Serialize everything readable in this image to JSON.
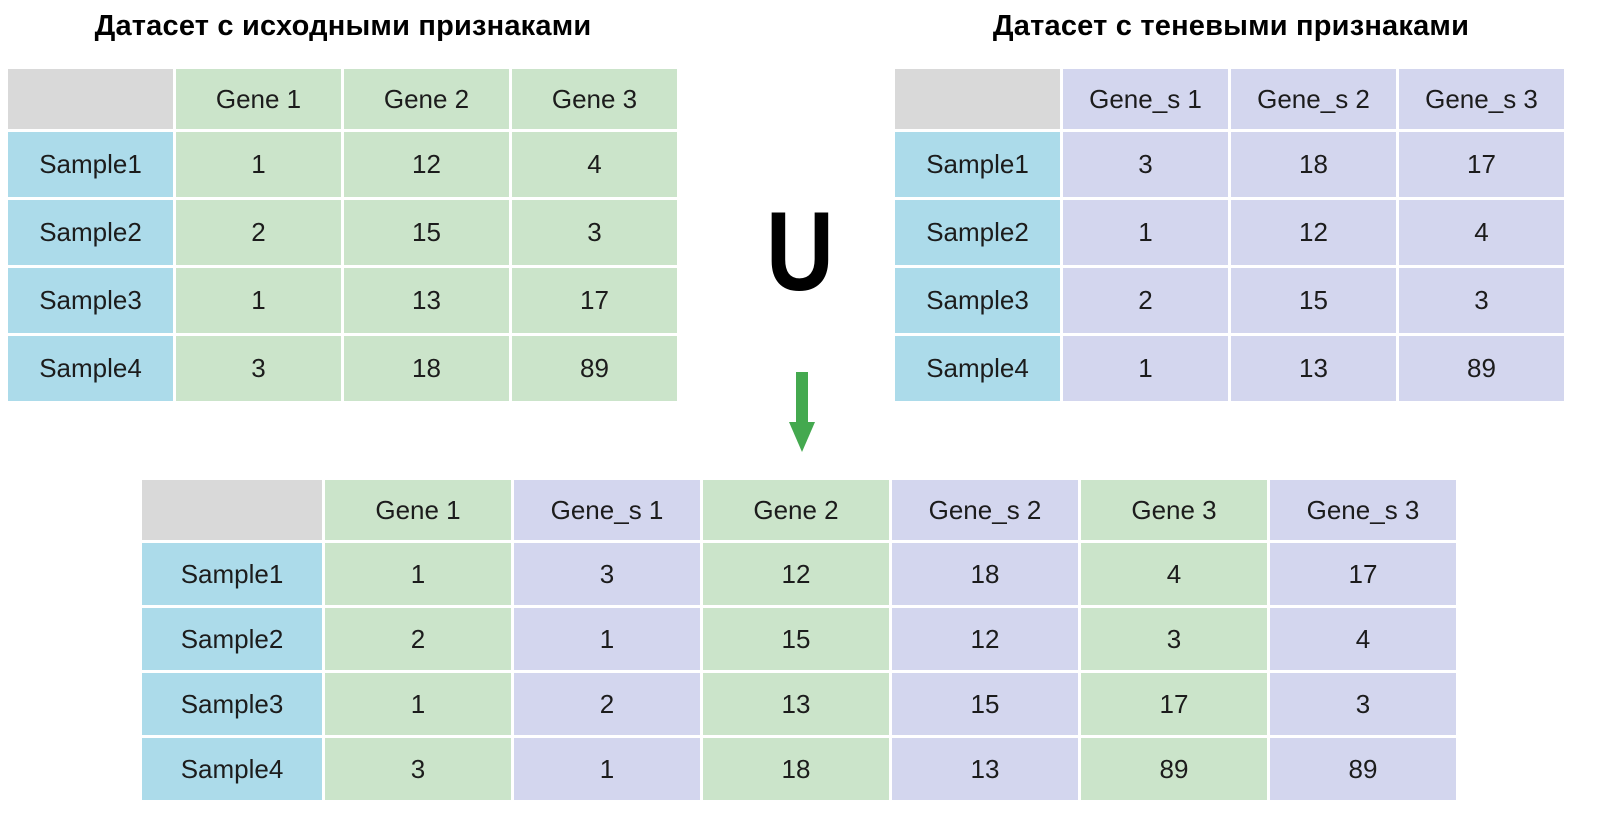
{
  "colors": {
    "original_feature_bg": "#cbe4ca",
    "shadow_feature_bg": "#d3d6ee",
    "sample_label_bg": "#acdbea",
    "corner_bg": "#d9d9d9",
    "arrow_green": "#44a94f",
    "text": "#1c1c1c"
  },
  "union": {
    "symbol": "U"
  },
  "tables": {
    "original": {
      "title": "Датасет с исходными признаками",
      "columns": [
        {
          "label": "Gene 1",
          "type": "green"
        },
        {
          "label": "Gene 2",
          "type": "green"
        },
        {
          "label": "Gene 3",
          "type": "green"
        }
      ],
      "rows": [
        {
          "label": "Sample1",
          "values": [
            "1",
            "12",
            "4"
          ]
        },
        {
          "label": "Sample2",
          "values": [
            "2",
            "15",
            "3"
          ]
        },
        {
          "label": "Sample3",
          "values": [
            "1",
            "13",
            "17"
          ]
        },
        {
          "label": "Sample4",
          "values": [
            "3",
            "18",
            "89"
          ]
        }
      ]
    },
    "shadow": {
      "title": "Датасет с теневыми признаками",
      "columns": [
        {
          "label": "Gene_s 1",
          "type": "lavender"
        },
        {
          "label": "Gene_s 2",
          "type": "lavender"
        },
        {
          "label": "Gene_s 3",
          "type": "lavender"
        }
      ],
      "rows": [
        {
          "label": "Sample1",
          "values": [
            "3",
            "18",
            "17"
          ]
        },
        {
          "label": "Sample2",
          "values": [
            "1",
            "12",
            "4"
          ]
        },
        {
          "label": "Sample3",
          "values": [
            "2",
            "15",
            "3"
          ]
        },
        {
          "label": "Sample4",
          "values": [
            "1",
            "13",
            "89"
          ]
        }
      ]
    },
    "combined": {
      "title": "",
      "columns": [
        {
          "label": "Gene 1",
          "type": "green"
        },
        {
          "label": "Gene_s 1",
          "type": "lavender"
        },
        {
          "label": "Gene 2",
          "type": "green"
        },
        {
          "label": "Gene_s 2",
          "type": "lavender"
        },
        {
          "label": "Gene 3",
          "type": "green"
        },
        {
          "label": "Gene_s 3",
          "type": "lavender"
        }
      ],
      "rows": [
        {
          "label": "Sample1",
          "values": [
            "1",
            "3",
            "12",
            "18",
            "4",
            "17"
          ]
        },
        {
          "label": "Sample2",
          "values": [
            "2",
            "1",
            "15",
            "12",
            "3",
            "4"
          ]
        },
        {
          "label": "Sample3",
          "values": [
            "1",
            "2",
            "13",
            "15",
            "17",
            "3"
          ]
        },
        {
          "label": "Sample4",
          "values": [
            "3",
            "1",
            "18",
            "13",
            "89",
            "89"
          ]
        }
      ]
    }
  }
}
